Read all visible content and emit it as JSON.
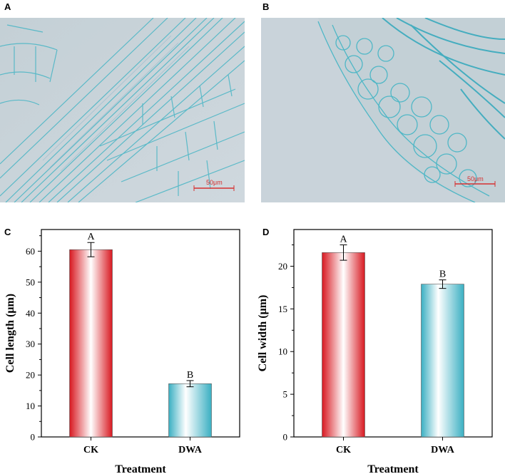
{
  "panels": {
    "a": {
      "letter": "A",
      "scale_bar": "50μm"
    },
    "b": {
      "letter": "B",
      "scale_bar": "50μm"
    },
    "c": {
      "letter": "C"
    },
    "d": {
      "letter": "D"
    }
  },
  "colors": {
    "ck_bar": "#e8202a",
    "dwa_bar": "#4bb8c8",
    "stain": "#4fb7c6",
    "background_tissue": "#c9d3da",
    "scale_bar": "#d63030"
  },
  "chart_data": [
    {
      "type": "bar",
      "categories": [
        "CK",
        "DWA"
      ],
      "values": [
        60.5,
        17.2
      ],
      "errors": [
        2.3,
        1.0
      ],
      "significance": [
        "A",
        "B"
      ],
      "xlabel": "Treatment",
      "ylabel": "Cell length (μm)",
      "ylim": [
        0,
        67
      ],
      "yticks": [
        0,
        10,
        20,
        30,
        40,
        50,
        60
      ],
      "grid": false
    },
    {
      "type": "bar",
      "categories": [
        "CK",
        "DWA"
      ],
      "values": [
        21.6,
        17.9
      ],
      "errors": [
        0.9,
        0.5
      ],
      "significance": [
        "A",
        "B"
      ],
      "xlabel": "Treatment",
      "ylabel": "Cell width (μm)",
      "ylim": [
        0,
        24.3
      ],
      "yticks": [
        0,
        5,
        10,
        15,
        20
      ],
      "grid": false
    }
  ]
}
